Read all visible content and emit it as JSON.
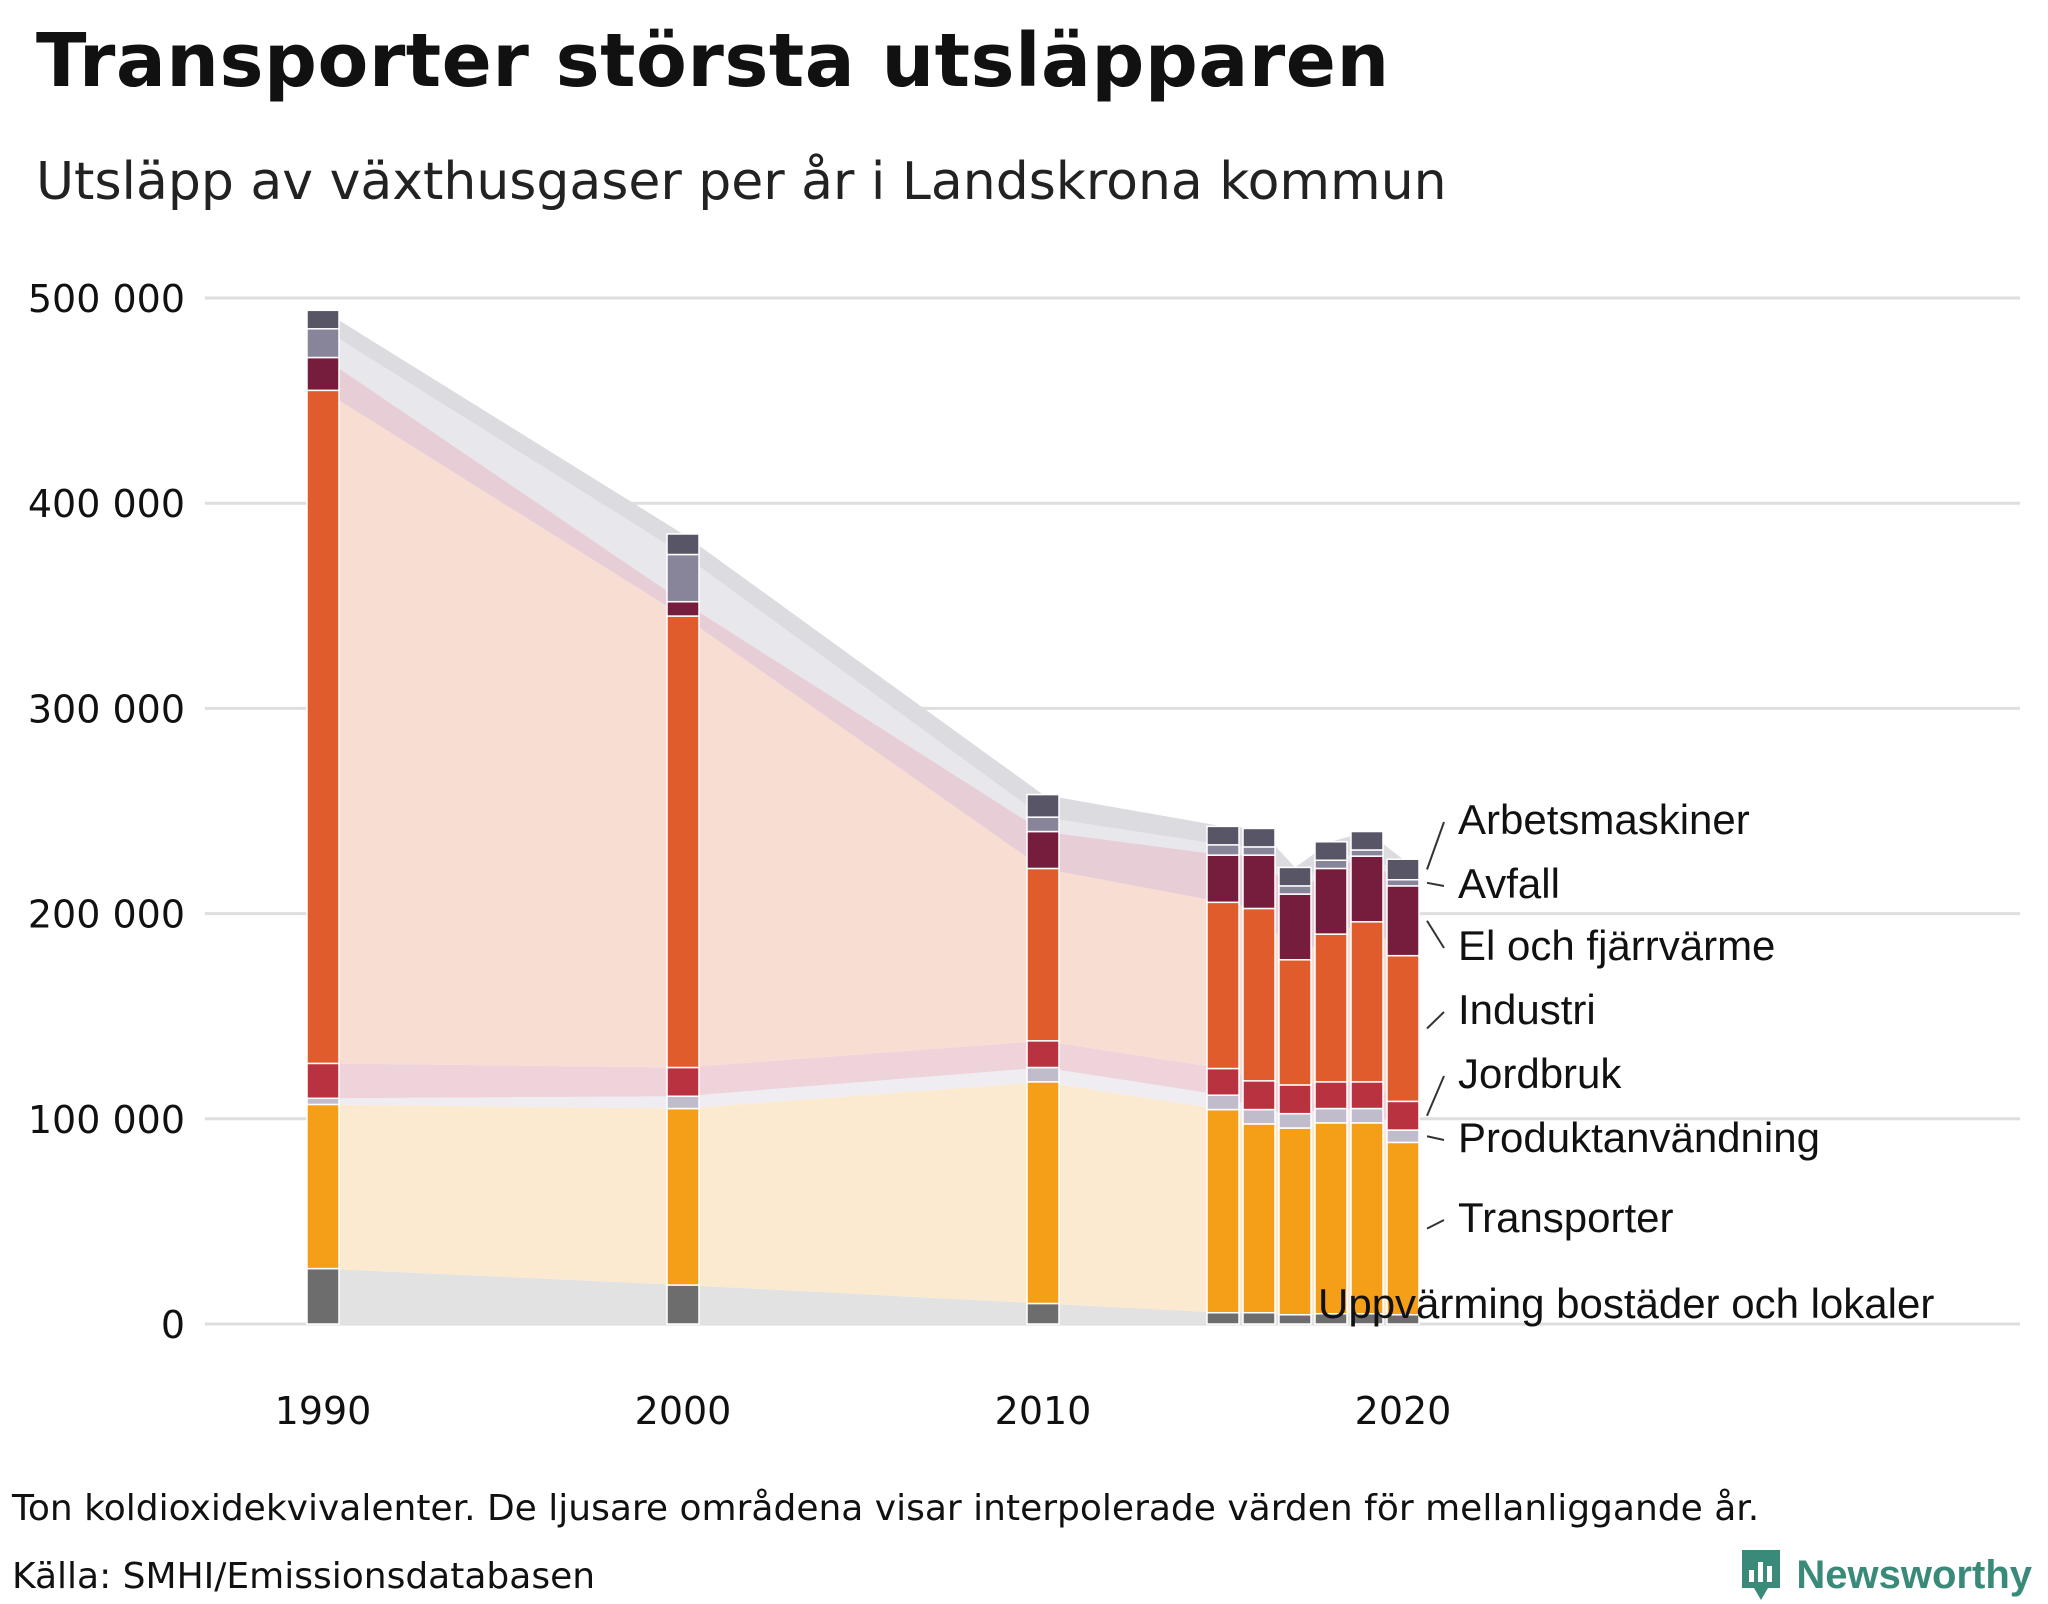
{
  "title": "Transporter största utsläpparen",
  "subtitle": "Utsläpp av växthusgaser per år i Landskrona kommun",
  "note": "Ton koldioxidekvivalenter. De ljusare områdena visar interpolerade värden för mellanliggande år.",
  "source": "Källa: SMHI/Emissionsdatabasen",
  "brand": {
    "name": "Newsworthy",
    "icon": "newsworthy-logo-icon",
    "color": "#3a8a7a"
  },
  "chart_data": {
    "type": "bar",
    "stacked": true,
    "title": "Utsläpp av växthusgaser per år i Landskrona kommun",
    "ylabel": "Ton koldioxidekvivalenter",
    "ylim": [
      0,
      500000
    ],
    "yticks": [
      0,
      100000,
      200000,
      300000,
      400000,
      500000
    ],
    "ytick_labels": [
      "0",
      "100 000",
      "200 000",
      "300 000",
      "400 000",
      "500 000"
    ],
    "xticks": [
      1990,
      2000,
      2010,
      2020
    ],
    "xtick_labels": [
      "1990",
      "2000",
      "2010",
      "2020"
    ],
    "categories": [
      1990,
      2000,
      2010,
      2015,
      2016,
      2017,
      2018,
      2019,
      2020
    ],
    "series": [
      {
        "name": "Uppvärming bostäder och lokaler",
        "color": "#6d6d6d",
        "area_color": "#e2e2e2",
        "values": [
          27000,
          19000,
          10000,
          5500,
          5500,
          4500,
          5000,
          5000,
          4500
        ]
      },
      {
        "name": "Transporter",
        "color": "#f59e18",
        "area_color": "#fcead0",
        "values": [
          80000,
          86000,
          108000,
          99000,
          92000,
          91000,
          93000,
          93000,
          84000
        ]
      },
      {
        "name": "Produktanvändning",
        "color": "#c0bccc",
        "area_color": "#efedf2",
        "values": [
          3000,
          6000,
          7000,
          7000,
          7000,
          7000,
          7000,
          7000,
          6000
        ]
      },
      {
        "name": "Jordbruk",
        "color": "#b8323f",
        "area_color": "#eed3da",
        "values": [
          17000,
          14000,
          13000,
          13000,
          14000,
          14000,
          13000,
          13000,
          14000
        ]
      },
      {
        "name": "Industri",
        "color": "#e05c2c",
        "area_color": "#f8ddd3",
        "values": [
          328000,
          220000,
          84000,
          81000,
          84000,
          61000,
          72000,
          78000,
          71000
        ]
      },
      {
        "name": "El och fjärrvärme",
        "color": "#761c3c",
        "area_color": "#e6cdd6",
        "values": [
          16000,
          7000,
          18000,
          23000,
          26000,
          32000,
          32000,
          32000,
          34000
        ]
      },
      {
        "name": "Avfall",
        "color": "#88859a",
        "area_color": "#e8e7ec",
        "values": [
          14000,
          23000,
          7000,
          5000,
          4000,
          4000,
          4000,
          3000,
          3000
        ]
      },
      {
        "name": "Arbetsmaskiner",
        "color": "#585566",
        "area_color": "#dcdbe0",
        "values": [
          9000,
          10000,
          11000,
          9000,
          9000,
          9000,
          9000,
          9000,
          10000
        ]
      }
    ],
    "legend_placement": "right, aligned to last bar",
    "grid": true
  }
}
